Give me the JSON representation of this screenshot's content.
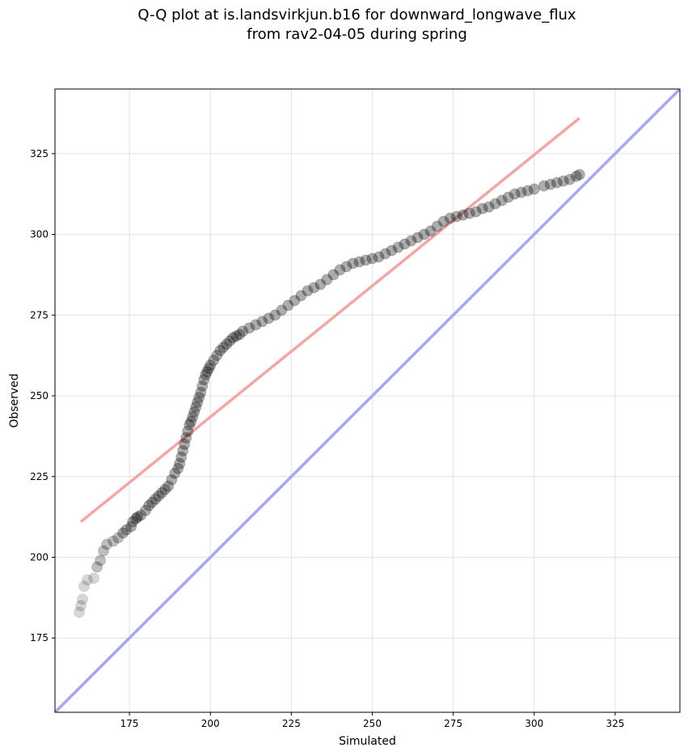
{
  "chart_data": {
    "type": "scatter",
    "title_line1": "Q-Q plot at is.landsvirkjun.b16 for downward_longwave_flux",
    "title_line2": "from rav2-04-05 during spring",
    "xlabel": "Simulated",
    "ylabel": "Observed",
    "xlim": [
      152,
      345
    ],
    "ylim": [
      152,
      345
    ],
    "xticks": [
      175,
      200,
      225,
      250,
      275,
      300,
      325
    ],
    "yticks": [
      175,
      200,
      225,
      250,
      275,
      300,
      325
    ],
    "grid": true,
    "colors": {
      "points": "#000000",
      "fit_line": "#f4a6a6",
      "identity_line": "#a6a6f4",
      "grid": "#e6e6e6"
    },
    "fit_line": {
      "x": [
        160,
        314
      ],
      "y": [
        211,
        336
      ]
    },
    "identity_line": {
      "x": [
        152,
        345
      ],
      "y": [
        152,
        345
      ]
    },
    "points": {
      "x": [
        159.5,
        160.0,
        160.5,
        161.0,
        162.0,
        164.0,
        165.0,
        166.0,
        167.0,
        168.0,
        170.0,
        171.5,
        173.0,
        174.0,
        175.5,
        176.0,
        177.0,
        177.5,
        178.5,
        180.0,
        181.0,
        182.0,
        183.0,
        184.0,
        185.0,
        186.0,
        187.0,
        188.0,
        189.0,
        190.0,
        190.5,
        191.0,
        191.5,
        192.0,
        192.5,
        193.0,
        193.5,
        194.0,
        194.5,
        195.0,
        195.5,
        196.0,
        196.5,
        197.0,
        197.5,
        198.0,
        198.5,
        199.0,
        199.5,
        200.0,
        201.0,
        202.0,
        203.0,
        204.0,
        205.0,
        206.0,
        207.0,
        208.0,
        209.0,
        210.0,
        212.0,
        214.0,
        216.0,
        218.0,
        220.0,
        222.0,
        224.0,
        226.0,
        228.0,
        230.0,
        232.0,
        234.0,
        236.0,
        238.0,
        240.0,
        242.0,
        244.0,
        246.0,
        248.0,
        250.0,
        252.0,
        254.0,
        256.0,
        258.0,
        260.0,
        262.0,
        264.0,
        266.0,
        268.0,
        270.0,
        272.0,
        274.0,
        276.0,
        278.0,
        280.0,
        282.0,
        284.0,
        286.0,
        288.0,
        290.0,
        292.0,
        294.0,
        296.0,
        298.0,
        300.0,
        303.0,
        305.0,
        307.0,
        309.0,
        311.0,
        313.0,
        314.0
      ],
      "y": [
        183.0,
        185.0,
        187.0,
        191.0,
        193.0,
        193.5,
        197.0,
        199.0,
        202.0,
        204.0,
        205.0,
        206.0,
        207.5,
        208.5,
        209.5,
        211.0,
        212.0,
        212.5,
        213.0,
        214.5,
        216.0,
        217.0,
        218.0,
        219.0,
        220.0,
        221.0,
        222.0,
        224.0,
        226.0,
        227.5,
        229.0,
        231.0,
        233.0,
        235.0,
        237.0,
        239.0,
        241.0,
        242.0,
        243.5,
        245.0,
        246.5,
        248.0,
        249.5,
        251.0,
        253.0,
        255.0,
        256.5,
        257.5,
        258.5,
        259.5,
        261.0,
        262.5,
        264.0,
        265.0,
        266.0,
        267.0,
        268.0,
        268.5,
        269.0,
        270.0,
        271.0,
        272.0,
        273.0,
        274.0,
        275.0,
        276.5,
        278.0,
        279.5,
        281.0,
        282.5,
        283.5,
        284.5,
        286.0,
        287.5,
        289.0,
        290.0,
        291.0,
        291.5,
        292.0,
        292.5,
        293.0,
        294.0,
        295.0,
        296.0,
        297.0,
        298.0,
        299.0,
        300.0,
        301.0,
        302.5,
        304.0,
        305.0,
        305.5,
        306.0,
        306.5,
        307.0,
        308.0,
        308.5,
        309.5,
        310.5,
        311.5,
        312.5,
        313.0,
        313.5,
        314.0,
        315.0,
        315.5,
        316.0,
        316.5,
        317.0,
        318.0,
        318.5
      ]
    }
  }
}
